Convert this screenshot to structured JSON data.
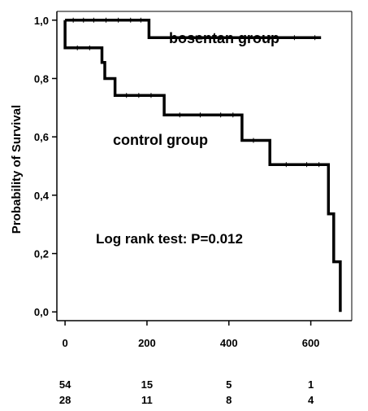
{
  "chart_data": {
    "type": "line",
    "ylabel": "Probability of Survival",
    "xlim": [
      -20,
      700
    ],
    "ylim": [
      -0.03,
      1.03
    ],
    "x_ticks": [
      0,
      200,
      400,
      600
    ],
    "x_tick_labels": [
      "0",
      "200",
      "400",
      "600"
    ],
    "y_ticks": [
      0.0,
      0.2,
      0.4,
      0.6,
      0.8,
      1.0
    ],
    "y_tick_labels": [
      "0,0",
      "0,2",
      "0,4",
      "0,6",
      "0,8",
      "1,0"
    ],
    "grid": false,
    "series": [
      {
        "name": "bosentan group",
        "step_points": [
          [
            0,
            1.0
          ],
          [
            205,
            1.0
          ],
          [
            205,
            0.94
          ],
          [
            625,
            0.94
          ]
        ]
      },
      {
        "name": "control group",
        "step_points": [
          [
            0,
            1.0
          ],
          [
            0,
            0.905
          ],
          [
            90,
            0.905
          ],
          [
            90,
            0.855
          ],
          [
            97,
            0.855
          ],
          [
            97,
            0.8
          ],
          [
            122,
            0.8
          ],
          [
            122,
            0.742
          ],
          [
            242,
            0.742
          ],
          [
            242,
            0.675
          ],
          [
            432,
            0.675
          ],
          [
            432,
            0.588
          ],
          [
            500,
            0.588
          ],
          [
            500,
            0.505
          ],
          [
            643,
            0.505
          ],
          [
            643,
            0.336
          ],
          [
            656,
            0.336
          ],
          [
            656,
            0.172
          ],
          [
            672,
            0.172
          ],
          [
            672,
            0.0
          ]
        ]
      }
    ],
    "annotations": [
      "Log rank test: P=0.012"
    ],
    "at_risk": {
      "x": [
        0,
        200,
        400,
        600
      ],
      "rows": [
        [
          "54",
          "15",
          "5",
          "1"
        ],
        [
          "28",
          "11",
          "8",
          "4"
        ]
      ]
    }
  }
}
